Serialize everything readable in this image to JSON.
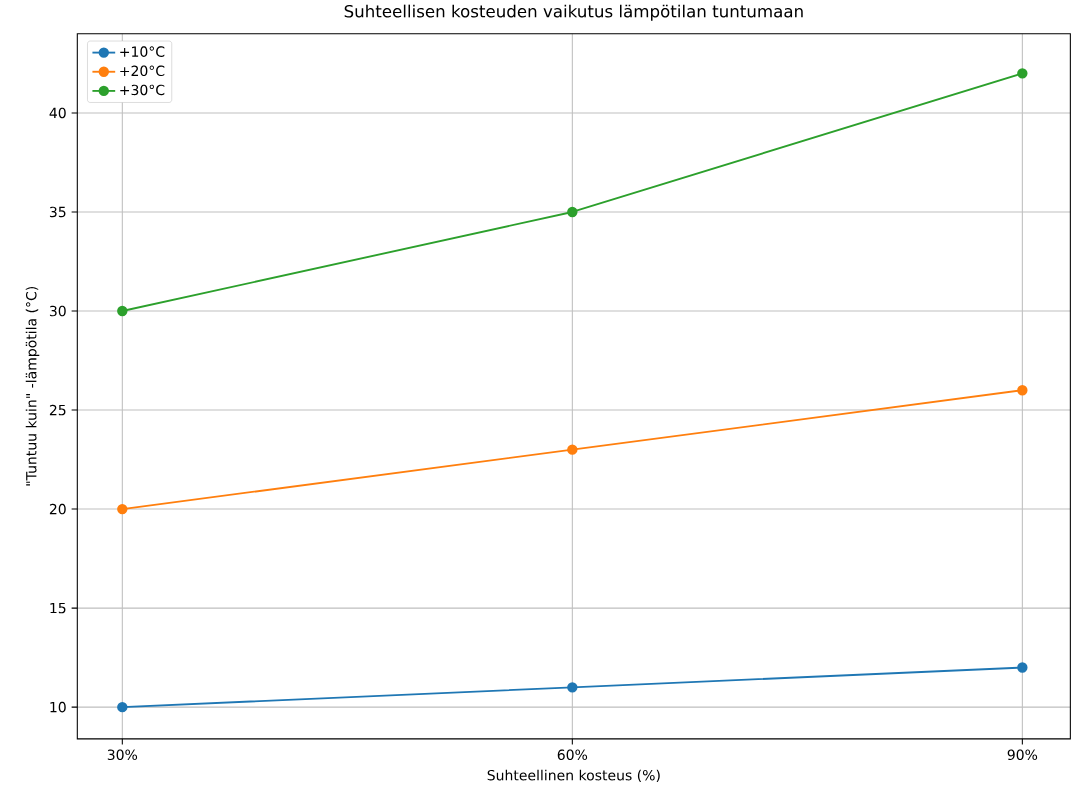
{
  "chart_data": {
    "type": "line",
    "title": "Suhteellisen kosteuden vaikutus lämpötilan tuntumaan",
    "xlabel": "Suhteellinen kosteus (%)",
    "ylabel": "\"Tuntuu kuin\" -lämpötila (°C)",
    "x": [
      30,
      60,
      90
    ],
    "series": [
      {
        "name": "+10°C",
        "color": "#1f77b4",
        "values": [
          10,
          11,
          12
        ]
      },
      {
        "name": "+20°C",
        "color": "#ff7f0e",
        "values": [
          20,
          23,
          26
        ]
      },
      {
        "name": "+30°C",
        "color": "#2ca02c",
        "values": [
          30,
          35,
          42
        ]
      }
    ],
    "xlim": [
      27,
      93.2
    ],
    "xticks": [
      {
        "value": 30,
        "label": "30%"
      },
      {
        "value": 60,
        "label": "60%"
      },
      {
        "value": 90,
        "label": "90%"
      }
    ],
    "ylim": [
      8.4,
      44
    ],
    "yticks": [
      10,
      15,
      20,
      25,
      30,
      35,
      40
    ],
    "grid": true,
    "legend": "top left",
    "marker": "circle",
    "line_style": "solid"
  }
}
